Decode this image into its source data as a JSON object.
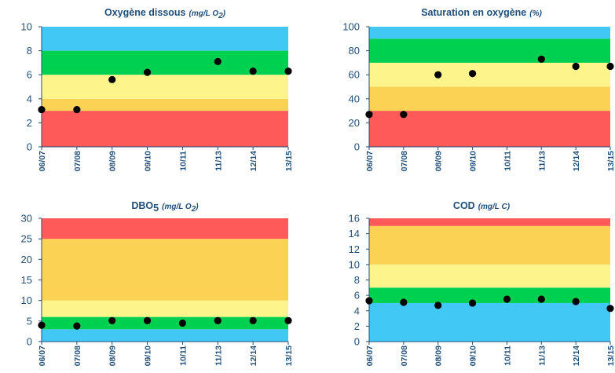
{
  "colors": {
    "blue": "#41c8f5",
    "green": "#00d050",
    "yellow": "#fdf58c",
    "orange": "#fcd255",
    "red": "#ff5a5a",
    "axis": "#1f4e79",
    "point": "#000000"
  },
  "chart_data": [
    {
      "type": "scatter",
      "title": "Oxygène dissous",
      "title_unit": "(mg/L O",
      "title_unit_sub": "2",
      "title_unit_end": ")",
      "categories": [
        "06/07",
        "07/08",
        "08/09",
        "09/10",
        "10/11",
        "11/13",
        "12/14",
        "13/15"
      ],
      "ylim": [
        0,
        10
      ],
      "yticks": [
        "0",
        "2",
        "4",
        "6",
        "8",
        "10"
      ],
      "values": [
        3.1,
        3.1,
        5.6,
        6.2,
        null,
        7.1,
        6.3,
        6.3
      ],
      "bands": [
        {
          "from": 0,
          "to": 3,
          "color": "red"
        },
        {
          "from": 3,
          "to": 4,
          "color": "orange"
        },
        {
          "from": 4,
          "to": 6,
          "color": "yellow"
        },
        {
          "from": 6,
          "to": 8,
          "color": "green"
        },
        {
          "from": 8,
          "to": 10,
          "color": "blue"
        }
      ]
    },
    {
      "type": "scatter",
      "title": "Saturation en oxygène",
      "title_unit": "(%)",
      "title_unit_sub": "",
      "title_unit_end": "",
      "categories": [
        "06/07",
        "07/08",
        "08/09",
        "09/10",
        "10/11",
        "11/13",
        "12/14",
        "13/15"
      ],
      "ylim": [
        0,
        100
      ],
      "yticks": [
        "0",
        "20",
        "40",
        "60",
        "80",
        "100"
      ],
      "values": [
        27,
        27,
        60,
        61,
        null,
        73,
        67,
        67
      ],
      "bands": [
        {
          "from": 0,
          "to": 30,
          "color": "red"
        },
        {
          "from": 30,
          "to": 50,
          "color": "orange"
        },
        {
          "from": 50,
          "to": 70,
          "color": "yellow"
        },
        {
          "from": 70,
          "to": 90,
          "color": "green"
        },
        {
          "from": 90,
          "to": 100,
          "color": "blue"
        }
      ]
    },
    {
      "type": "scatter",
      "title": "DBO",
      "title_sub": "5",
      "title_unit": "(mg/L O",
      "title_unit_sub": "2",
      "title_unit_end": ")",
      "categories": [
        "06/07",
        "07/08",
        "08/09",
        "09/10",
        "10/11",
        "11/13",
        "12/14",
        "13/15"
      ],
      "ylim": [
        0,
        30
      ],
      "yticks": [
        "0",
        "5",
        "10",
        "15",
        "20",
        "25",
        "30"
      ],
      "values": [
        4,
        3.8,
        5.1,
        5.1,
        4.5,
        5.1,
        5.1,
        5.1
      ],
      "bands": [
        {
          "from": 0,
          "to": 3,
          "color": "blue"
        },
        {
          "from": 3,
          "to": 6,
          "color": "green"
        },
        {
          "from": 6,
          "to": 10,
          "color": "yellow"
        },
        {
          "from": 10,
          "to": 25,
          "color": "orange"
        },
        {
          "from": 25,
          "to": 30,
          "color": "red"
        }
      ]
    },
    {
      "type": "scatter",
      "title": "COD",
      "title_unit": "(mg/L C)",
      "title_unit_sub": "",
      "title_unit_end": "",
      "categories": [
        "06/07",
        "07/08",
        "08/09",
        "09/10",
        "10/11",
        "11/13",
        "12/14",
        "13/15"
      ],
      "ylim": [
        0,
        16
      ],
      "yticks": [
        "0",
        "2",
        "4",
        "6",
        "8",
        "10",
        "12",
        "14",
        "16"
      ],
      "values": [
        5.3,
        5.1,
        4.7,
        5.0,
        5.5,
        5.5,
        5.2,
        4.3
      ],
      "bands": [
        {
          "from": 0,
          "to": 5,
          "color": "blue"
        },
        {
          "from": 5,
          "to": 7,
          "color": "green"
        },
        {
          "from": 7,
          "to": 10,
          "color": "yellow"
        },
        {
          "from": 10,
          "to": 15,
          "color": "orange"
        },
        {
          "from": 15,
          "to": 16,
          "color": "red"
        }
      ]
    }
  ]
}
